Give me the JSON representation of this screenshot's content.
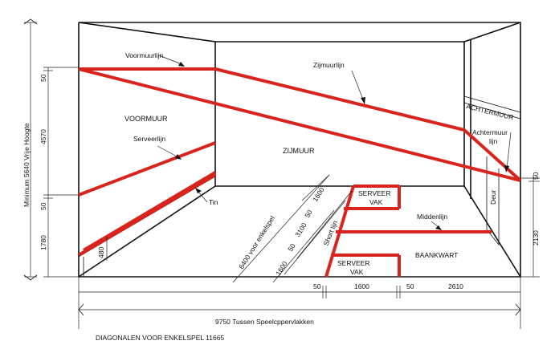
{
  "labels": {
    "voormuurlijn": "Voormuurlijn",
    "voormuur": "VOORMUUR",
    "serveerlijn": "Serveerlijn",
    "tin": "Tin",
    "zijmuurlijn": "Zijmuurlijn",
    "zijmuur": "ZIJMUUR",
    "achtermuur": "ACHTERMUUR",
    "achtermuurlijn_1": "Achtermuur",
    "achtermuurlijn_2": "lijn",
    "deur": "Deur",
    "serveervak_1": "SERVEER",
    "vak_1": "VAK",
    "serveervak_2": "SERVEER",
    "vak_2": "VAK",
    "middenlijn": "Middenlijn",
    "baankwart": "BAANKWART",
    "short_lijn": "Short lijn",
    "diagonaal_6400": "6400 voor enkelspel",
    "diagonaal_3100": "3100",
    "diagonaal_50_a": "50",
    "diagonaal_50_b": "50",
    "diagonaal_1600_a": "1600",
    "diagonaal_1600_b": "1600",
    "dim_480": "480"
  },
  "dimensions": {
    "min_hoogte": "Minimum 5640 Vrije Hoogte",
    "left_50_top": "50",
    "left_4570": "4570",
    "left_50_mid": "50",
    "left_1780": "1780",
    "right_50": "50",
    "right_2130": "2130",
    "bottom_50_a": "50",
    "bottom_1600": "1600",
    "bottom_50_b": "50",
    "bottom_2610": "2610",
    "total_width": "9750 Tussen Speelcppervlakken",
    "diagonalen": "DIAGONALEN VOOR ENKELSPEL 11665"
  }
}
